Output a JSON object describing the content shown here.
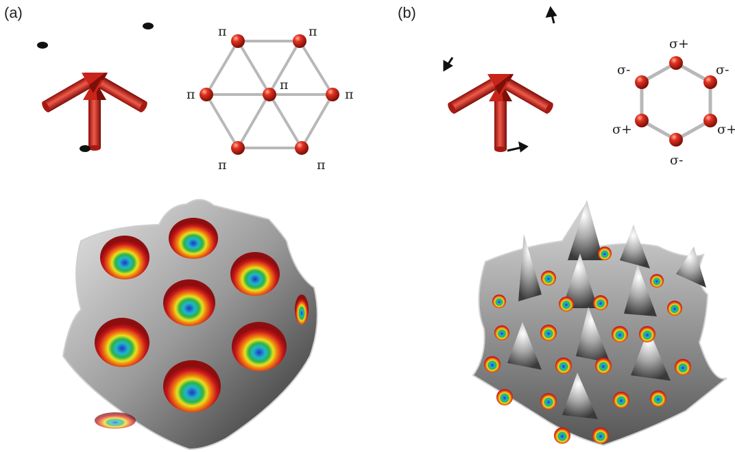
{
  "panels": {
    "a": {
      "label": "(a)",
      "lattice": "triangular",
      "site_labels": [
        "π",
        "π",
        "π",
        "π",
        "π",
        "π",
        "π"
      ]
    },
    "b": {
      "label": "(b)",
      "lattice": "honeycomb",
      "site_labels": [
        "σ+",
        "σ-",
        "σ-",
        "σ+",
        "σ+",
        "σ-"
      ]
    }
  },
  "colors": {
    "arrow": "#d42a1e",
    "site": "#d8241a",
    "bond": "#b8b8b8",
    "surface": "#bdbdbd",
    "well_red": "#c8161b",
    "well_orange": "#f07a12",
    "well_yellow": "#e8e21c",
    "well_green": "#2db24a",
    "well_cyan": "#1fb6c9",
    "well_blue": "#2334c8"
  }
}
